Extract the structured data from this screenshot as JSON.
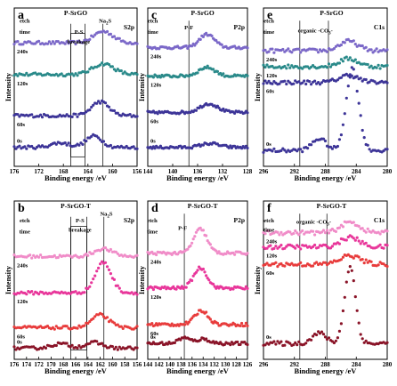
{
  "y_axis_label": "Intensity",
  "x_axis_label": "Binding energy /eV",
  "colors": {
    "violet": "#7b68c8",
    "teal": "#2a8a8a",
    "navy": "#3d3598",
    "pink_light": "#f08cc8",
    "magenta": "#e8369a",
    "red": "#e83c3c",
    "maroon": "#8a1428"
  },
  "chart_data": [
    {
      "panel": "a",
      "type": "scatter",
      "title": "P-SrGO",
      "region": "S2p",
      "xlabel": "Binding energy /eV",
      "ylabel": "Intensity",
      "xlim": [
        176,
        156
      ],
      "xticks": [
        176,
        172,
        168,
        164,
        160,
        156
      ],
      "xtick_labels": [
        "176",
        "172",
        "168",
        "164",
        "160",
        "156"
      ],
      "annotations": [
        {
          "text": "etch",
          "x": 174.3,
          "y": 0.94
        },
        {
          "text": "time",
          "x": 174.3,
          "y": 0.87
        },
        {
          "text": "P-S",
          "x": 165.5,
          "y": 0.87
        },
        {
          "text": "breakage",
          "x": 165.5,
          "y": 0.81
        },
        {
          "text": "Na",
          "x": 161.2,
          "y": 0.94,
          "subscript": "2",
          "suffix": "S"
        }
      ],
      "vlines": [
        166.8,
        164.5,
        161.6
      ],
      "box": [
        166.8,
        164.5
      ],
      "series": [
        {
          "name": "240s",
          "color_key": "violet",
          "x_label": 175.3,
          "peaks": [
            [
              161.5,
              0.9,
              1.6
            ]
          ]
        },
        {
          "name": "120s",
          "color_key": "teal",
          "x_label": 175.3,
          "peaks": [
            [
              161.5,
              0.85,
              1.7
            ]
          ]
        },
        {
          "name": "60s",
          "color_key": "navy",
          "x_label": 175.3,
          "peaks": [
            [
              162.0,
              1.1,
              1.4
            ]
          ]
        },
        {
          "name": "0s",
          "color_key": "navy",
          "x_label": 175.3,
          "peaks": [
            [
              163.0,
              0.9,
              1.3
            ],
            [
              168.5,
              0.35,
              1.5
            ]
          ]
        }
      ]
    },
    {
      "panel": "c",
      "type": "scatter",
      "title": "P-SrGO",
      "region": "P2p",
      "xlabel": "Binding energy /eV",
      "ylabel": "Intensity",
      "xlim": [
        144,
        128
      ],
      "xticks": [
        144,
        140,
        136,
        132,
        128
      ],
      "xtick_labels": [
        "144",
        "140",
        "136",
        "132",
        "128"
      ],
      "annotations": [
        {
          "text": "etch",
          "x": 143.2,
          "y": 0.94
        },
        {
          "text": "time",
          "x": 143.2,
          "y": 0.87
        },
        {
          "text": "P-F",
          "x": 137.4,
          "y": 0.9
        }
      ],
      "vlines": [
        137.4
      ],
      "series": [
        {
          "name": "240s",
          "color_key": "violet",
          "x_label": 143.6,
          "peaks": [
            [
              134.5,
              1.2,
              1.2
            ]
          ]
        },
        {
          "name": "120s",
          "color_key": "teal",
          "x_label": 143.6,
          "peaks": [
            [
              134.5,
              0.8,
              1.3
            ]
          ]
        },
        {
          "name": "60s",
          "color_key": "navy",
          "x_label": 143.6,
          "peaks": [
            [
              134.2,
              0.8,
              1.4
            ]
          ]
        },
        {
          "name": "0s",
          "color_key": "navy",
          "x_label": 143.6,
          "peaks": [
            [
              134.0,
              0.35,
              1.4
            ]
          ]
        }
      ]
    },
    {
      "panel": "e",
      "type": "scatter",
      "title": "P-SrGO",
      "region": "C1s",
      "xlabel": "Binding energy /eV",
      "ylabel": "Intensity",
      "xlim": [
        296,
        280
      ],
      "xticks": [
        296,
        292,
        288,
        284,
        280
      ],
      "xtick_labels": [
        "296",
        "292",
        "288",
        "284",
        "280"
      ],
      "annotations": [
        {
          "text": "etch",
          "x": 295.3,
          "y": 0.94
        },
        {
          "text": "time",
          "x": 295.3,
          "y": 0.87
        },
        {
          "text": "organic -CO",
          "x": 289.3,
          "y": 0.88,
          "subscript": "3",
          "suffix": "-"
        }
      ],
      "vlines": [
        291.3,
        287.6
      ],
      "series": [
        {
          "name": "240s",
          "color_key": "violet",
          "x_label": 295.6,
          "peaks": [
            [
              285.0,
              0.6,
              1.2
            ]
          ]
        },
        {
          "name": "120s",
          "color_key": "teal",
          "x_label": 295.6,
          "peaks": [
            [
              285.0,
              0.5,
              1.2
            ]
          ]
        },
        {
          "name": "60s",
          "color_key": "navy",
          "x_label": 295.6,
          "peaks": [
            [
              285.0,
              0.45,
              1.2
            ]
          ]
        },
        {
          "name": "0s",
          "color_key": "navy",
          "x_label": 295.6,
          "peaks": [
            [
              284.5,
              5.2,
              0.8
            ],
            [
              288.8,
              0.75,
              0.9
            ]
          ]
        }
      ]
    },
    {
      "panel": "b",
      "type": "scatter",
      "title": "P-SrGO-T",
      "region": "S2p",
      "xlabel": "Binding energy /eV",
      "ylabel": "Intensity",
      "xlim": [
        176,
        156
      ],
      "xticks": [
        176,
        174,
        172,
        170,
        168,
        166,
        164,
        162,
        160,
        158,
        156
      ],
      "xtick_labels": [
        "176",
        "174",
        "172",
        "170",
        "168",
        "166",
        "164",
        "162",
        "160",
        "158",
        "156"
      ],
      "annotations": [
        {
          "text": "etch",
          "x": 174.3,
          "y": 0.9
        },
        {
          "text": "time",
          "x": 174.3,
          "y": 0.83
        },
        {
          "text": "P-S",
          "x": 165.3,
          "y": 0.9
        },
        {
          "text": "breakage",
          "x": 165.3,
          "y": 0.84
        },
        {
          "text": "Na",
          "x": 161.0,
          "y": 0.94,
          "subscript": "2",
          "suffix": "S"
        }
      ],
      "vlines": [
        166.8,
        164.2,
        161.4
      ],
      "box": [
        166.8,
        164.2
      ],
      "series": [
        {
          "name": "240s",
          "color_key": "pink_light",
          "x_label": 175.3,
          "peaks": [
            [
              161.5,
              0.6,
              1.5
            ]
          ]
        },
        {
          "name": "120s",
          "color_key": "magenta",
          "x_label": 175.3,
          "peaks": [
            [
              161.5,
              2.4,
              1.3
            ]
          ]
        },
        {
          "name": "60s",
          "color_key": "red",
          "x_label": 175.3,
          "peaks": [
            [
              162.0,
              1.0,
              1.4
            ]
          ]
        },
        {
          "name": "0s",
          "color_key": "maroon",
          "x_label": 175.3,
          "peaks": [
            [
              163.0,
              0.45,
              1.4
            ],
            [
              168.5,
              0.35,
              1.5
            ]
          ]
        }
      ]
    },
    {
      "panel": "d",
      "type": "scatter",
      "title": "P-SrGO-T",
      "region": "P2p",
      "xlabel": "Binding energy /eV",
      "ylabel": "Intensity",
      "xlim": [
        144,
        126
      ],
      "xticks": [
        144,
        142,
        140,
        138,
        136,
        134,
        132,
        130,
        128,
        126
      ],
      "xtick_labels": [
        "144",
        "142",
        "140",
        "138",
        "136",
        "134",
        "132",
        "130",
        "128",
        "126"
      ],
      "annotations": [
        {
          "text": "etch",
          "x": 143.2,
          "y": 0.9
        },
        {
          "text": "time",
          "x": 143.2,
          "y": 0.83
        },
        {
          "text": "P-F",
          "x": 137.7,
          "y": 0.85
        }
      ],
      "vlines": [
        137.4
      ],
      "series": [
        {
          "name": "240s",
          "color_key": "pink_light",
          "x_label": 143.6,
          "peaks": [
            [
              134.5,
              1.9,
              1.2
            ]
          ]
        },
        {
          "name": "120s",
          "color_key": "magenta",
          "x_label": 143.6,
          "peaks": [
            [
              134.5,
              1.6,
              1.2
            ]
          ]
        },
        {
          "name": "60s",
          "color_key": "red",
          "x_label": 143.6,
          "peaks": [
            [
              134.3,
              1.1,
              1.2
            ]
          ]
        },
        {
          "name": "0s",
          "color_key": "maroon",
          "x_label": 143.6,
          "peaks": [
            [
              134.0,
              0.35,
              1.2
            ],
            [
              137.5,
              0.45,
              1.0
            ]
          ]
        }
      ]
    },
    {
      "panel": "f",
      "type": "scatter",
      "title": "P-SrGO-T",
      "region": "C1s",
      "xlabel": "Binding energy /eV",
      "ylabel": "Intensity",
      "xlim": [
        296,
        280
      ],
      "xticks": [
        296,
        292,
        288,
        284,
        280
      ],
      "xtick_labels": [
        "296",
        "292",
        "288",
        "284",
        "280"
      ],
      "annotations": [
        {
          "text": "etch",
          "x": 295.3,
          "y": 0.9
        },
        {
          "text": "time",
          "x": 295.3,
          "y": 0.84
        },
        {
          "text": "organic -CO",
          "x": 289.5,
          "y": 0.89,
          "subscript": "3",
          "suffix": "-"
        }
      ],
      "vlines": [
        291.3,
        287.8
      ],
      "series": [
        {
          "name": "240s",
          "color_key": "pink_light",
          "x_label": 295.6,
          "peaks": [
            [
              284.8,
              0.6,
              1.2
            ]
          ]
        },
        {
          "name": "120s",
          "color_key": "magenta",
          "x_label": 295.6,
          "peaks": [
            [
              284.8,
              0.55,
              1.2
            ]
          ]
        },
        {
          "name": "60s",
          "color_key": "red",
          "x_label": 295.6,
          "peaks": [
            [
              284.8,
              0.5,
              1.3
            ]
          ]
        },
        {
          "name": "0s",
          "color_key": "maroon",
          "x_label": 295.6,
          "peaks": [
            [
              284.8,
              4.4,
              0.7
            ],
            [
              288.8,
              0.6,
              0.9
            ]
          ]
        }
      ]
    }
  ]
}
